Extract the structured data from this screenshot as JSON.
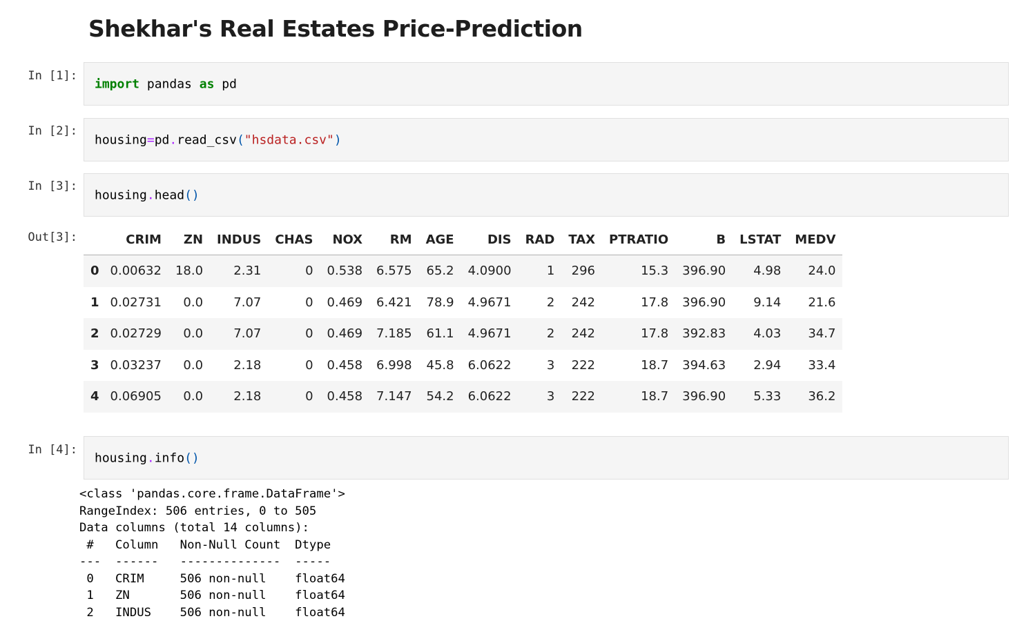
{
  "notebook": {
    "title": "Shekhar's Real Estates Price-Prediction"
  },
  "cells": {
    "c1": {
      "prompt": "In [1]:",
      "kw1": "import",
      "mod": " pandas ",
      "kw2": "as",
      "alias": " pd"
    },
    "c2": {
      "prompt": "In [2]:",
      "var": "housing",
      "eq": "=",
      "obj": "pd",
      "dot": ".",
      "fn": "read_csv",
      "open": "(",
      "arg": "\"hsdata.csv\"",
      "close": ")"
    },
    "c3": {
      "prompt": "In [3]:",
      "var": "housing",
      "dot": ".",
      "fn": "head",
      "parens": "()",
      "out_prompt": "Out[3]:"
    },
    "c4": {
      "prompt": "In [4]:",
      "var": "housing",
      "dot": ".",
      "fn": "info",
      "parens": "()"
    }
  },
  "dataframe": {
    "columns": [
      "CRIM",
      "ZN",
      "INDUS",
      "CHAS",
      "NOX",
      "RM",
      "AGE",
      "DIS",
      "RAD",
      "TAX",
      "PTRATIO",
      "B",
      "LSTAT",
      "MEDV"
    ],
    "rows": [
      {
        "index": "0",
        "values": [
          "0.00632",
          "18.0",
          "2.31",
          "0",
          "0.538",
          "6.575",
          "65.2",
          "4.0900",
          "1",
          "296",
          "15.3",
          "396.90",
          "4.98",
          "24.0"
        ]
      },
      {
        "index": "1",
        "values": [
          "0.02731",
          "0.0",
          "7.07",
          "0",
          "0.469",
          "6.421",
          "78.9",
          "4.9671",
          "2",
          "242",
          "17.8",
          "396.90",
          "9.14",
          "21.6"
        ]
      },
      {
        "index": "2",
        "values": [
          "0.02729",
          "0.0",
          "7.07",
          "0",
          "0.469",
          "7.185",
          "61.1",
          "4.9671",
          "2",
          "242",
          "17.8",
          "392.83",
          "4.03",
          "34.7"
        ]
      },
      {
        "index": "3",
        "values": [
          "0.03237",
          "0.0",
          "2.18",
          "0",
          "0.458",
          "6.998",
          "45.8",
          "6.0622",
          "3",
          "222",
          "18.7",
          "394.63",
          "2.94",
          "33.4"
        ]
      },
      {
        "index": "4",
        "values": [
          "0.06905",
          "0.0",
          "2.18",
          "0",
          "0.458",
          "7.147",
          "54.2",
          "6.0622",
          "3",
          "222",
          "18.7",
          "396.90",
          "5.33",
          "36.2"
        ]
      }
    ]
  },
  "info_output": [
    "<class 'pandas.core.frame.DataFrame'>",
    "RangeIndex: 506 entries, 0 to 505",
    "Data columns (total 14 columns):",
    " #   Column   Non-Null Count  Dtype  ",
    "---  ------   --------------  -----  ",
    " 0   CRIM     506 non-null    float64",
    " 1   ZN       506 non-null    float64",
    " 2   INDUS    506 non-null    float64"
  ]
}
